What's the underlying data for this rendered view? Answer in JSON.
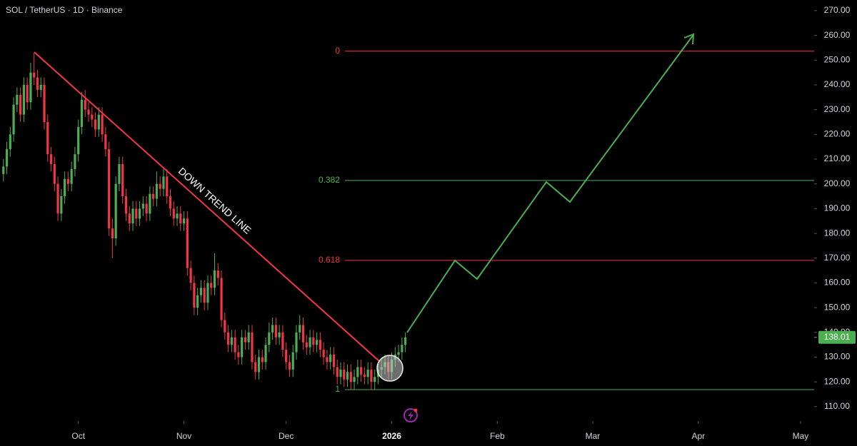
{
  "chart_data": {
    "type": "candlestick",
    "title": "SOL / TetherUS · 1D · Binance",
    "up_color": "#4caf50",
    "down_color": "#f23645",
    "x": [
      -22,
      -21,
      -20,
      -19,
      -18,
      -17,
      -16,
      -15,
      -14,
      -13,
      -12,
      -11,
      -10,
      -9,
      -8,
      -7,
      -6,
      -5,
      -4,
      -3,
      -2,
      -1,
      0,
      1,
      2,
      3,
      4,
      5,
      6,
      7,
      8,
      9,
      10,
      11,
      12,
      13,
      14,
      15,
      16,
      17,
      18,
      19,
      20,
      21,
      22,
      23,
      24,
      25,
      26,
      27,
      28,
      29,
      30,
      31,
      32,
      33,
      34,
      35,
      36,
      37,
      38,
      39,
      40,
      41,
      42,
      43,
      44,
      45,
      46,
      47,
      48,
      49,
      50,
      51,
      52,
      53,
      54,
      55,
      56,
      57,
      58,
      59,
      60,
      61,
      62,
      63,
      64,
      65,
      66,
      67,
      68,
      69,
      70,
      71,
      72,
      73,
      74,
      75,
      76,
      77,
      78,
      79,
      80,
      81,
      82,
      83,
      84,
      85,
      86,
      87,
      88,
      89,
      90,
      91,
      92,
      93,
      94,
      95,
      96
    ],
    "open": [
      204,
      207,
      214,
      220,
      232,
      236,
      228,
      240,
      233,
      245,
      243,
      238,
      240,
      225,
      212,
      208,
      200,
      188,
      195,
      202,
      200,
      206,
      212,
      223,
      234,
      230,
      228,
      226,
      222,
      228,
      220,
      214,
      182,
      178,
      200,
      208,
      195,
      188,
      184,
      190,
      186,
      190,
      192,
      188,
      196,
      194,
      200,
      198,
      203,
      195,
      190,
      186,
      188,
      184,
      186,
      166,
      160,
      150,
      155,
      158,
      152,
      160,
      158,
      165,
      162,
      145,
      140,
      135,
      138,
      132,
      130,
      138,
      136,
      140,
      128,
      124,
      130,
      128,
      135,
      140,
      143,
      138,
      140,
      133,
      128,
      125,
      132,
      140,
      143,
      136,
      134,
      138,
      135,
      137,
      133,
      130,
      128,
      131,
      126,
      122,
      125,
      121,
      124,
      120,
      122,
      126,
      123,
      122,
      125,
      120,
      122,
      125,
      126,
      128,
      124,
      129,
      131,
      132,
      135
    ],
    "high": [
      210,
      217,
      223,
      235,
      239,
      239,
      243,
      243,
      249,
      253,
      246,
      243,
      243,
      228,
      215,
      211,
      203,
      198,
      205,
      205,
      209,
      215,
      226,
      237,
      238,
      233,
      231,
      229,
      231,
      231,
      223,
      217,
      186,
      203,
      211,
      211,
      198,
      191,
      193,
      193,
      193,
      195,
      195,
      199,
      199,
      205,
      203,
      206,
      206,
      198,
      193,
      191,
      191,
      189,
      189,
      169,
      163,
      158,
      161,
      161,
      163,
      163,
      172,
      168,
      165,
      148,
      143,
      141,
      141,
      135,
      141,
      141,
      143,
      143,
      131,
      133,
      133,
      138,
      144,
      146,
      146,
      143,
      143,
      136,
      131,
      135,
      143,
      147,
      146,
      139,
      141,
      141,
      140,
      140,
      136,
      133,
      134,
      134,
      129,
      128,
      128,
      127,
      127,
      125,
      129,
      129,
      126,
      128,
      128,
      125,
      128,
      129,
      131,
      131,
      132,
      134,
      135,
      138,
      140
    ],
    "low": [
      201,
      204,
      211,
      217,
      229,
      225,
      225,
      230,
      230,
      240,
      235,
      235,
      222,
      209,
      205,
      197,
      185,
      185,
      192,
      197,
      197,
      203,
      209,
      220,
      227,
      225,
      223,
      219,
      219,
      217,
      211,
      179,
      170,
      175,
      197,
      192,
      185,
      181,
      181,
      183,
      183,
      187,
      185,
      185,
      191,
      191,
      195,
      195,
      192,
      187,
      183,
      183,
      181,
      181,
      163,
      157,
      147,
      147,
      152,
      149,
      149,
      155,
      155,
      159,
      142,
      137,
      132,
      132,
      129,
      127,
      127,
      133,
      133,
      125,
      121,
      121,
      125,
      125,
      132,
      137,
      135,
      135,
      130,
      125,
      122,
      122,
      129,
      137,
      133,
      131,
      131,
      132,
      132,
      130,
      127,
      125,
      125,
      123,
      119,
      119,
      118,
      118,
      117,
      117,
      119,
      120,
      119,
      119,
      117,
      117,
      119,
      122,
      123,
      121,
      121,
      126,
      128,
      129,
      132
    ],
    "close": [
      207,
      214,
      220,
      232,
      236,
      228,
      240,
      233,
      245,
      243,
      238,
      240,
      225,
      212,
      208,
      200,
      188,
      195,
      202,
      200,
      206,
      212,
      223,
      234,
      230,
      228,
      226,
      222,
      228,
      220,
      214,
      182,
      178,
      200,
      208,
      195,
      188,
      184,
      190,
      186,
      190,
      192,
      188,
      196,
      194,
      200,
      198,
      203,
      195,
      190,
      186,
      188,
      184,
      186,
      166,
      160,
      150,
      155,
      158,
      152,
      160,
      158,
      165,
      162,
      145,
      140,
      135,
      138,
      132,
      130,
      138,
      136,
      140,
      128,
      124,
      130,
      128,
      135,
      140,
      143,
      138,
      140,
      133,
      128,
      125,
      132,
      140,
      143,
      136,
      134,
      138,
      135,
      137,
      133,
      130,
      128,
      131,
      126,
      122,
      125,
      121,
      124,
      120,
      122,
      126,
      123,
      122,
      125,
      120,
      122,
      125,
      126,
      128,
      124,
      129,
      131,
      132,
      135,
      138.01
    ],
    "xlim": [
      -23,
      216
    ],
    "xticks": [
      {
        "value": 0,
        "label": "Oct"
      },
      {
        "value": 31,
        "label": "Nov"
      },
      {
        "value": 61,
        "label": "Dec"
      },
      {
        "value": 92,
        "label": "2026"
      },
      {
        "value": 123,
        "label": "Feb"
      },
      {
        "value": 151,
        "label": "Mar"
      },
      {
        "value": 182,
        "label": "Apr"
      },
      {
        "value": 212,
        "label": "May"
      }
    ],
    "ylim": [
      104.2,
      274.3
    ],
    "yticks": [
      {
        "value": 110,
        "label": "110.00"
      },
      {
        "value": 120,
        "label": "120.00"
      },
      {
        "value": 130,
        "label": "130.00"
      },
      {
        "value": 140,
        "label": "140.00"
      },
      {
        "value": 150,
        "label": "150.00"
      },
      {
        "value": 160,
        "label": "160.00"
      },
      {
        "value": 170,
        "label": "170.00"
      },
      {
        "value": 180,
        "label": "180.00"
      },
      {
        "value": 190,
        "label": "190.00"
      },
      {
        "value": 200,
        "label": "200.00"
      },
      {
        "value": 210,
        "label": "210.00"
      },
      {
        "value": 220,
        "label": "220.00"
      },
      {
        "value": 230,
        "label": "230.00"
      },
      {
        "value": 240,
        "label": "240.00"
      },
      {
        "value": 250,
        "label": "250.00"
      },
      {
        "value": 260,
        "label": "260.00"
      },
      {
        "value": 270,
        "label": "270.00"
      }
    ],
    "last_price": 138.01,
    "last_price_color": "#4caf50",
    "fib_levels": [
      {
        "label": "0",
        "value": 253.6,
        "color": "#f23645"
      },
      {
        "label": "0.382",
        "value": 201.4,
        "color": "#4caf50"
      },
      {
        "label": "0.618",
        "value": 169.1,
        "color": "#f23645"
      },
      {
        "label": "1",
        "value": 116.9,
        "color": "#4caf50"
      }
    ],
    "trend_label": "DOWN TREND LINE"
  }
}
